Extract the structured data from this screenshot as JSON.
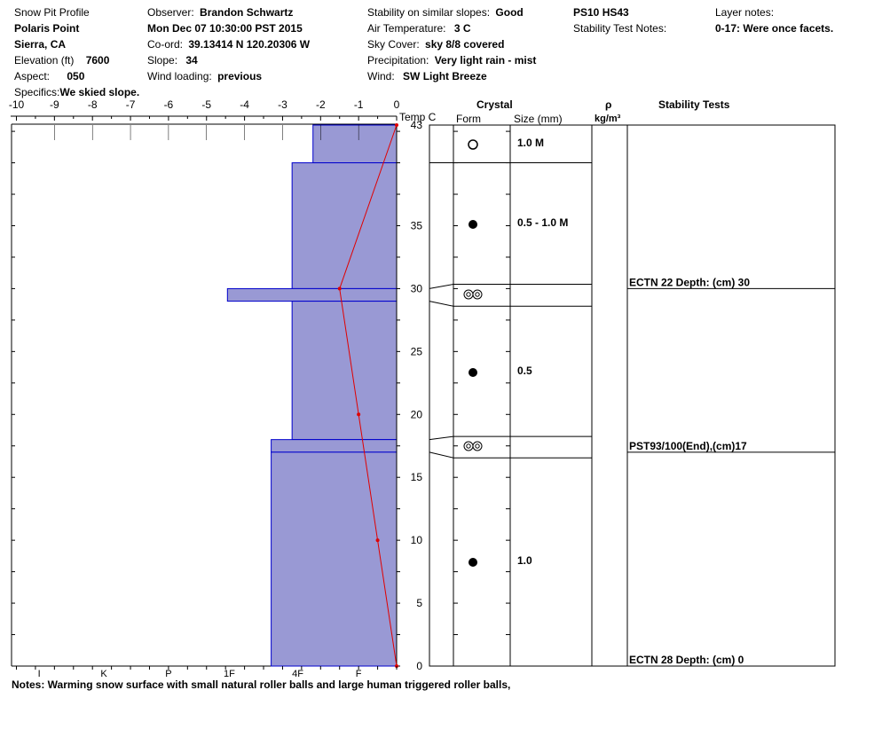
{
  "header": {
    "col1": {
      "title": "Snow Pit Profile",
      "location": "Polaris Point",
      "region": "Sierra, CA",
      "elevation_label": "Elevation (ft)",
      "elevation_value": "7600",
      "aspect_label": "Aspect:",
      "aspect_value": "050",
      "specifics_label": "Specifics:",
      "specifics_value": "We skied slope."
    },
    "col2": {
      "observer_label": "Observer:",
      "observer_value": "Brandon Schwartz",
      "datetime": "Mon Dec 07 10:30:00 PST 2015",
      "coord_label": "Co-ord:",
      "coord_value": "39.13414 N 120.20306 W",
      "slope_label": "Slope:",
      "slope_value": "34",
      "wind_loading_label": "Wind loading:",
      "wind_loading_value": "previous"
    },
    "col3": {
      "stability_label": "Stability on similar slopes:",
      "stability_value": "Good",
      "air_temp_label": "Air Temperature:",
      "air_temp_value": "3 C",
      "sky_label": "Sky Cover:",
      "sky_value": "sky 8/8 covered",
      "precip_label": "Precipitation:",
      "precip_value": "Very light rain - mist",
      "wind_label": "Wind:",
      "wind_value": "SW Light Breeze"
    },
    "col4": {
      "code": "PS10 HS43",
      "stability_notes_label": "Stability Test Notes:"
    },
    "col5": {
      "layer_notes_label": "Layer notes:",
      "layer_notes_value": "0-17: Were once facets."
    }
  },
  "table_headers": {
    "crystal": "Crystal",
    "form": "Form",
    "size": "Size (mm)",
    "density_symbol": "ρ",
    "density_unit": "kg/m³",
    "stability_tests": "Stability Tests"
  },
  "notes": "Notes:  Warming snow surface with small natural roller balls and large human triggered roller balls,",
  "chart_data": {
    "type": "snow_profile",
    "temp_axis": {
      "label": "Temp C",
      "min": -10,
      "max": 0,
      "ticks": [
        "-10",
        "-9",
        "-8",
        "-7",
        "-6",
        "-5",
        "-4",
        "-3",
        "-2",
        "-1",
        "0"
      ]
    },
    "depth_axis": {
      "min": 0,
      "max": 43,
      "ticks": [
        "43",
        "35",
        "30",
        "25",
        "20",
        "15",
        "10",
        "5",
        "0"
      ],
      "tick_values": [
        43,
        35,
        30,
        25,
        20,
        15,
        10,
        5,
        0
      ]
    },
    "hardness_axis": {
      "labels": [
        "I",
        "K",
        "P",
        "1F",
        "4F",
        "F"
      ],
      "label_temps": [
        -9.4,
        -7.7,
        -6.0,
        -4.4,
        -2.6,
        -1.0
      ]
    },
    "hardness_layers": [
      {
        "bottom": 40,
        "top": 43,
        "hardness_temp": -2.2
      },
      {
        "bottom": 30,
        "top": 40,
        "hardness_temp": -2.75
      },
      {
        "bottom": 29,
        "top": 30,
        "hardness_temp": -4.45
      },
      {
        "bottom": 18,
        "top": 29,
        "hardness_temp": -2.75
      },
      {
        "bottom": 17,
        "top": 18,
        "hardness_temp": -3.3
      },
      {
        "bottom": 0,
        "top": 17,
        "hardness_temp": -3.3
      }
    ],
    "temperature_profile": [
      {
        "depth": 43,
        "temp": 0.0
      },
      {
        "depth": 30,
        "temp": -1.5
      },
      {
        "depth": 20,
        "temp": -1.0
      },
      {
        "depth": 10,
        "temp": -0.5
      },
      {
        "depth": 0,
        "temp": 0.0
      }
    ],
    "crystal_layers": [
      {
        "top": 43,
        "bottom": 40,
        "form": "open-circle",
        "size": "1.0 M"
      },
      {
        "top": 40,
        "bottom": 30,
        "form": "filled-circle",
        "size": "0.5 - 1.0 M"
      },
      {
        "top": 30,
        "bottom": 29,
        "form": "double-ring",
        "size": ""
      },
      {
        "top": 29,
        "bottom": 18,
        "form": "filled-circle",
        "size": "0.5"
      },
      {
        "top": 18,
        "bottom": 17,
        "form": "double-ring",
        "size": ""
      },
      {
        "top": 17,
        "bottom": 0,
        "form": "filled-circle",
        "size": "1.0"
      }
    ],
    "stability_tests": [
      {
        "depth": 30,
        "label": "ECTN 22   Depth: (cm) 30"
      },
      {
        "depth": 17,
        "label": "PST93/100(End),(cm)17"
      },
      {
        "depth": 0,
        "label": "ECTN 28   Depth: (cm) 0"
      }
    ],
    "colors": {
      "hardness_fill": "#9999d4",
      "hardness_stroke": "#0000cc",
      "temperature": "#e00000"
    }
  }
}
